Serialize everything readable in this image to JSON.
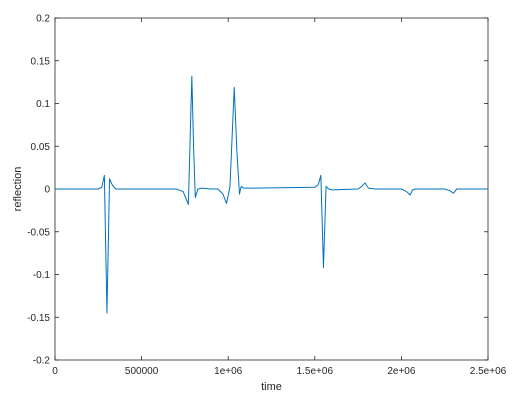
{
  "chart_data": {
    "type": "line",
    "title": "",
    "xlabel": "time",
    "ylabel": "reflection",
    "xlim": [
      0,
      2500000
    ],
    "ylim": [
      -0.2,
      0.2
    ],
    "grid": false,
    "legend": "none",
    "line_color": "#0072bd",
    "xticks": [
      {
        "value": 0,
        "label": "0"
      },
      {
        "value": 500000,
        "label": "500000"
      },
      {
        "value": 1000000,
        "label": "1e+06"
      },
      {
        "value": 1500000,
        "label": "1.5e+06"
      },
      {
        "value": 2000000,
        "label": "2e+06"
      },
      {
        "value": 2500000,
        "label": "2.5e+06"
      }
    ],
    "yticks": [
      {
        "value": -0.2,
        "label": "-0.2"
      },
      {
        "value": -0.15,
        "label": "-0.15"
      },
      {
        "value": -0.1,
        "label": "-0.1"
      },
      {
        "value": -0.05,
        "label": "-0.05"
      },
      {
        "value": 0,
        "label": "0"
      },
      {
        "value": 0.05,
        "label": "0.05"
      },
      {
        "value": 0.1,
        "label": "0.1"
      },
      {
        "value": 0.15,
        "label": "0.15"
      },
      {
        "value": 0.2,
        "label": "0.2"
      }
    ],
    "series": [
      {
        "x": [
          0,
          250000,
          270000,
          285000,
          300000,
          315000,
          330000,
          350000,
          400000,
          700000,
          740000,
          770000,
          790000,
          800000,
          810000,
          825000,
          850000,
          900000,
          940000,
          970000,
          990000,
          1010000,
          1035000,
          1050000,
          1065000,
          1075000,
          1090000,
          1150000,
          1500000,
          1520000,
          1535000,
          1550000,
          1565000,
          1580000,
          1600000,
          1750000,
          1770000,
          1790000,
          1810000,
          1850000,
          2000000,
          2010000,
          2030000,
          2050000,
          2065000,
          2080000,
          2100000,
          2250000,
          2280000,
          2300000,
          2320000,
          2360000,
          2500000
        ],
        "y": [
          0,
          0,
          0.002,
          0.016,
          -0.145,
          0.012,
          0.005,
          0,
          0,
          0,
          -0.003,
          -0.018,
          0.132,
          0.05,
          -0.01,
          0,
          0.001,
          0,
          0,
          -0.006,
          -0.017,
          0.002,
          0.119,
          0.045,
          -0.006,
          0.003,
          0.001,
          0.001,
          0.002,
          0.005,
          0.016,
          -0.092,
          0.003,
          0,
          -0.001,
          0,
          0.003,
          0.007,
          0.001,
          0,
          0,
          -0.001,
          -0.003,
          -0.007,
          -0.001,
          0,
          0,
          0,
          -0.002,
          -0.005,
          0,
          0,
          0
        ]
      }
    ]
  }
}
